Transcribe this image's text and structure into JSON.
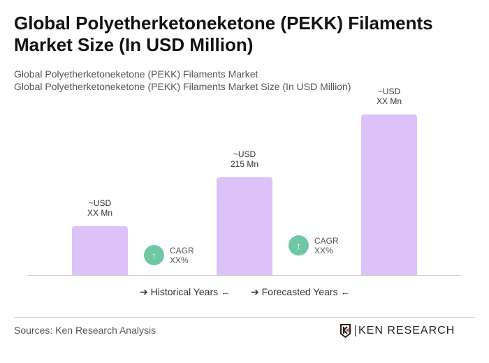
{
  "title": "Global Polyetherketoneketone (PEKK) Filaments Market Size (In USD Million)",
  "subtitle1": "Global Polyetherketoneketone (PEKK) Filaments Market",
  "subtitle2": "Global Polyetherketoneketone (PEKK) Filaments Market Size (In USD Million)",
  "chart_data": {
    "type": "bar",
    "categories": [
      "",
      "",
      ""
    ],
    "values": [
      null,
      215,
      null
    ],
    "labels": [
      [
        "~USD",
        "XX Mn"
      ],
      [
        "~USD",
        "215 Mn"
      ],
      [
        "~USD",
        "XX Mn"
      ]
    ],
    "bar_color": "#dcc2f7",
    "cagr": [
      {
        "label": "CAGR",
        "value": "XX%"
      },
      {
        "label": "CAGR",
        "value": "XX%"
      }
    ],
    "legend": [
      "Historical Years",
      "Forecasted Years"
    ]
  },
  "footer": {
    "source": "Sources: Ken Research Analysis",
    "logo": "KEN RESEARCH"
  }
}
